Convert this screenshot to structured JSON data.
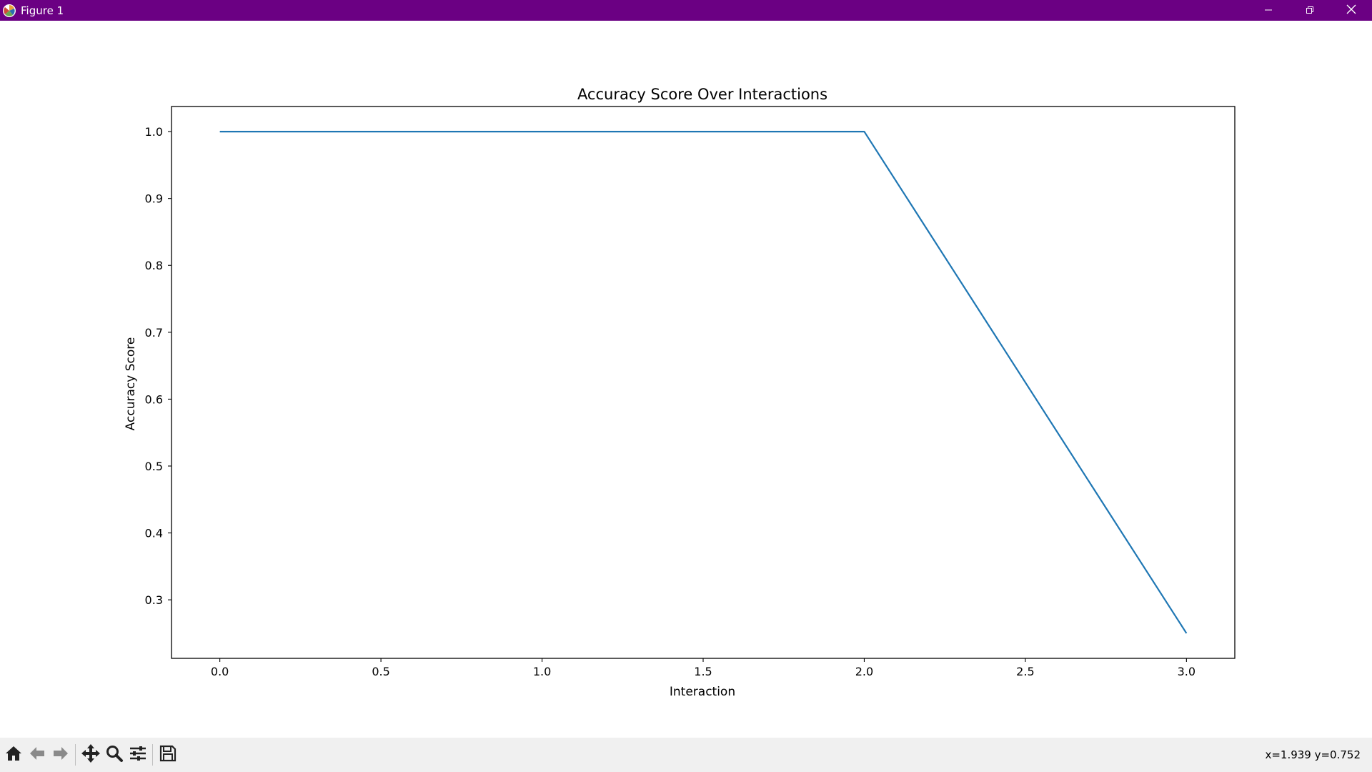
{
  "window": {
    "title": "Figure 1",
    "title_bar_color": "#6b0083"
  },
  "icons": {
    "app": "matplotlib-icon",
    "minimize": "minimize-icon",
    "restore": "restore-icon",
    "close": "close-icon",
    "home": "home-icon",
    "back": "arrow-left-icon",
    "forward": "arrow-right-icon",
    "pan": "move-icon",
    "zoom": "magnifier-icon",
    "configure": "sliders-icon",
    "save": "floppy-disk-icon"
  },
  "toolbar": {
    "coordinates": "x=1.939 y=0.752"
  },
  "chart_data": {
    "type": "line",
    "title": "Accuracy Score Over Interactions",
    "xlabel": "Interaction",
    "ylabel": "Accuracy Score",
    "xlim": [
      -0.15,
      3.15
    ],
    "ylim": [
      0.2125,
      1.0375
    ],
    "xticks": [
      0.0,
      0.5,
      1.0,
      1.5,
      2.0,
      2.5,
      3.0
    ],
    "xtick_labels": [
      "0.0",
      "0.5",
      "1.0",
      "1.5",
      "2.0",
      "2.5",
      "3.0"
    ],
    "yticks": [
      0.3,
      0.4,
      0.5,
      0.6,
      0.7,
      0.8,
      0.9,
      1.0
    ],
    "ytick_labels": [
      "0.3",
      "0.4",
      "0.5",
      "0.6",
      "0.7",
      "0.8",
      "0.9",
      "1.0"
    ],
    "grid": false,
    "series": [
      {
        "x": [
          0,
          1,
          2,
          3
        ],
        "y": [
          1.0,
          1.0,
          1.0,
          0.25
        ],
        "color": "#1f77b4"
      }
    ]
  }
}
